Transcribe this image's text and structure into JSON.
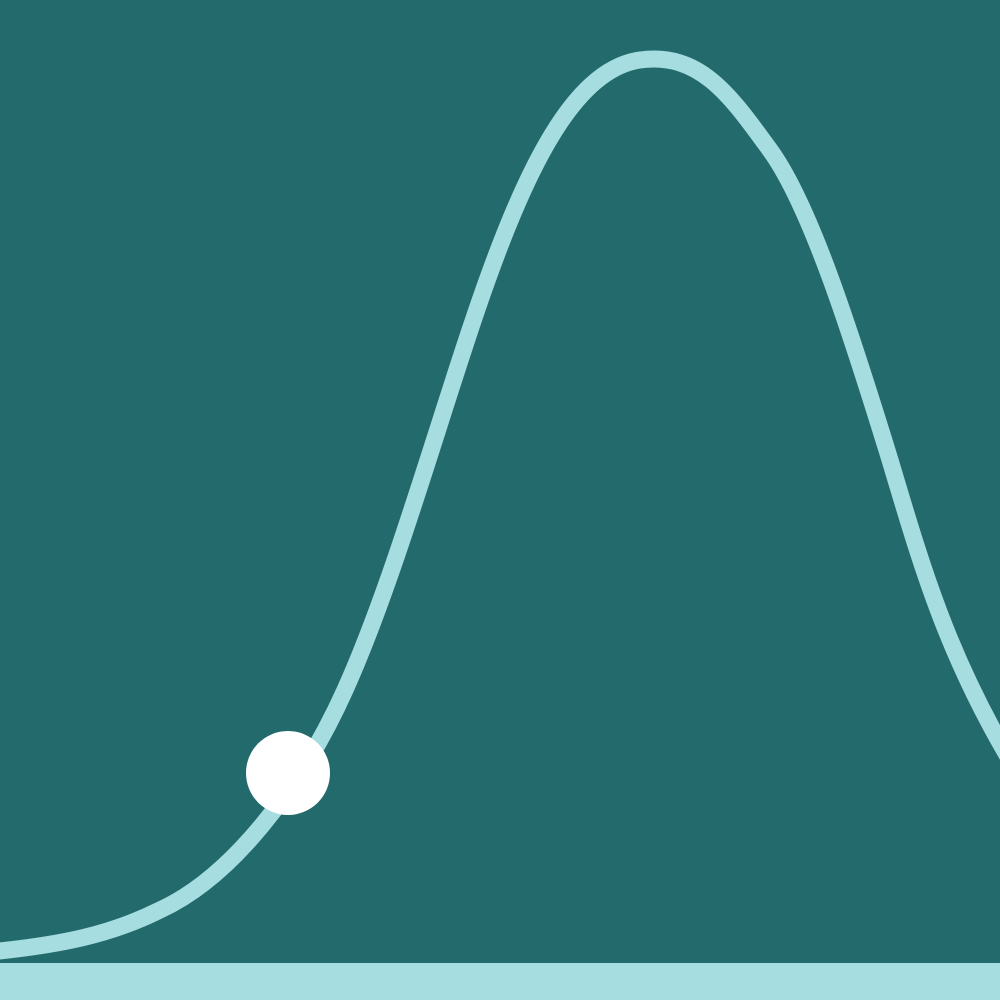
{
  "colors": {
    "background": "#236a6d",
    "curve": "#a6dde0",
    "baseline": "#a6dde0",
    "marker": "#ffffff"
  },
  "illustration": {
    "kind": "bell-curve",
    "marker_icon": "circle-dot"
  }
}
